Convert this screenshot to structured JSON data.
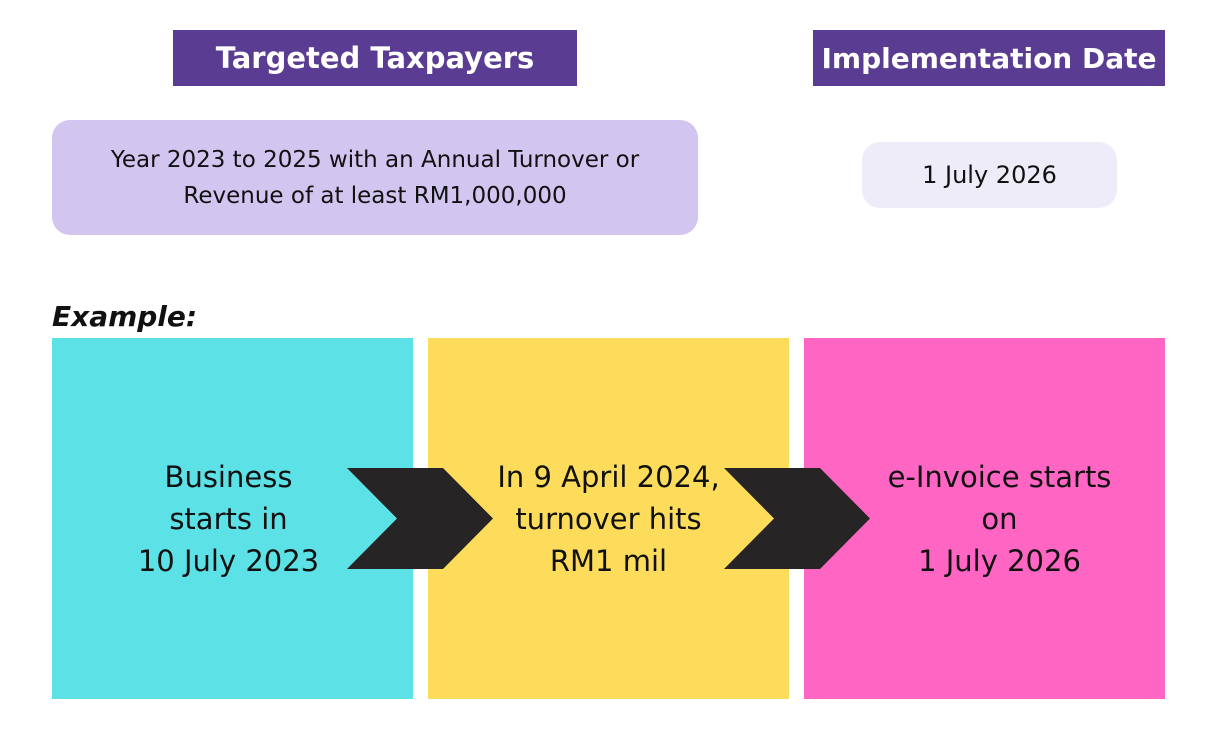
{
  "headers": {
    "targeted": "Targeted Taxpayers",
    "implementation": "Implementation Date"
  },
  "targeted_box": {
    "line1": "Year 2023 to 2025 with an Annual Turnover or",
    "line2": "Revenue of at least RM1,000,000"
  },
  "implementation_box": {
    "date": "1 July 2026"
  },
  "example": {
    "label": "Example:",
    "steps": [
      {
        "lines": [
          "Business",
          "starts in",
          "10 July 2023"
        ],
        "color": "#5ce1e6"
      },
      {
        "lines": [
          "In 9 April 2024,",
          "turnover hits",
          "RM1 mil"
        ],
        "color": "#fddc5c"
      },
      {
        "lines": [
          "e-Invoice starts",
          "on",
          "1 July 2026"
        ],
        "color": "#ff66c4"
      }
    ]
  },
  "colors": {
    "header_bg": "#5a3d92",
    "targeted_box_bg": "#d2c5f0",
    "date_box_bg": "#efecf9",
    "arrow": "#262425"
  },
  "icons": [
    "chevron-right-icon"
  ]
}
